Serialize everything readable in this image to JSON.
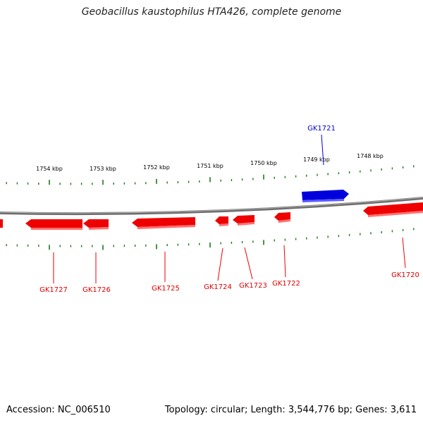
{
  "title": "Geobacillus kaustophilus HTA426, complete genome",
  "footer": {
    "accession": "Accession: NC_006510",
    "summary": "Topology: circular; Length: 3,544,776 bp; Genes: 3,611"
  },
  "colors": {
    "forward_gene": "#0000dd",
    "reverse_gene": "#ee0000",
    "backbone": "#808080",
    "ticks": "#1a7a1a"
  },
  "scale_labels": [
    {
      "label": "1754 kbp",
      "kbp": 1754
    },
    {
      "label": "1753 kbp",
      "kbp": 1753
    },
    {
      "label": "1752 kbp",
      "kbp": 1752
    },
    {
      "label": "1751 kbp",
      "kbp": 1751
    },
    {
      "label": "1750 kbp",
      "kbp": 1750
    },
    {
      "label": "1749 kbp",
      "kbp": 1749
    },
    {
      "label": "1748 kbp",
      "kbp": 1748
    }
  ],
  "genes": [
    {
      "name": "GK1727",
      "strand": "reverse"
    },
    {
      "name": "GK1726",
      "strand": "reverse"
    },
    {
      "name": "GK1725",
      "strand": "reverse"
    },
    {
      "name": "GK1724",
      "strand": "reverse"
    },
    {
      "name": "GK1723",
      "strand": "reverse"
    },
    {
      "name": "GK1722",
      "strand": "reverse"
    },
    {
      "name": "GK1721",
      "strand": "forward"
    },
    {
      "name": "GK1720",
      "strand": "reverse"
    }
  ]
}
